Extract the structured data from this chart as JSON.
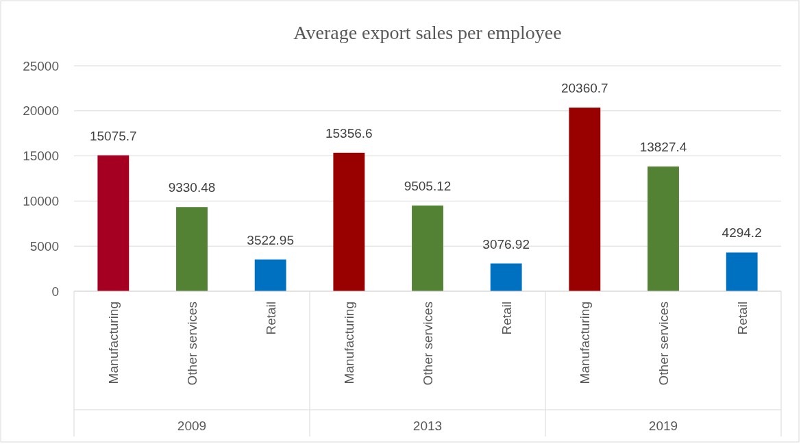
{
  "chart_data": {
    "type": "bar",
    "title": "Average export sales per employee",
    "categories": [
      "Manufacturing",
      "Other services",
      "Retail",
      "Manufacturing",
      "Other services",
      "Retail",
      "Manufacturing",
      "Other services",
      "Retail"
    ],
    "values": [
      15075.7,
      9330.48,
      3522.95,
      15356.6,
      9505.12,
      3076.92,
      20360.7,
      13827.4,
      4294.2
    ],
    "colors": [
      "#a50021",
      "#548235",
      "#0070c0",
      "#990000",
      "#548235",
      "#0070c0",
      "#990000",
      "#548235",
      "#0070c0"
    ],
    "ylim": [
      0,
      25000
    ],
    "yticks": [
      0,
      5000,
      10000,
      15000,
      20000,
      25000
    ],
    "grid": "y",
    "data_labels": true,
    "annotations": [
      "2009",
      "2013",
      "2019"
    ]
  }
}
